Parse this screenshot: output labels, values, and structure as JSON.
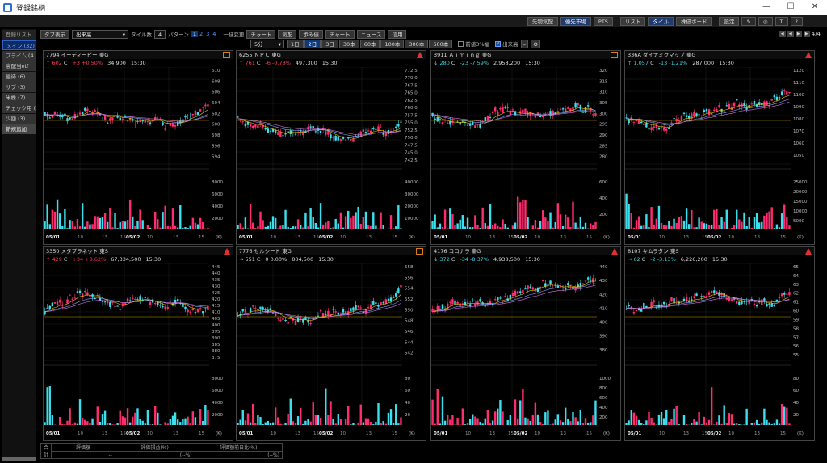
{
  "window": {
    "title": "登録銘柄",
    "min": "—",
    "max": "☐",
    "close": "✕"
  },
  "top_buttons": [
    {
      "label": "先物気配",
      "active": false
    },
    {
      "label": "優先市場",
      "active": true
    },
    {
      "label": "PTS",
      "active": false
    },
    {
      "label": "リスト",
      "active": false
    },
    {
      "label": "タイル",
      "active": true
    },
    {
      "label": "株価ボード",
      "active": false
    },
    {
      "label": "設定",
      "active": false
    }
  ],
  "sidebar": {
    "header": "登録リスト",
    "items": [
      "メイン (32)",
      "プライム (4",
      "高配当etf",
      "優待 (6)",
      "サブ (3)",
      "米株 (7)",
      "チェック用 (",
      "少額 (3)"
    ],
    "selected": 0,
    "add_button": "新規追加"
  },
  "toolbar": {
    "tab_display": "タブ表示",
    "sort_select": "出来高",
    "tile_count_label": "タイル数",
    "tile_count": "4",
    "pattern_label": "パターン",
    "patterns": [
      "1",
      "2",
      "3",
      "4"
    ],
    "bulk_change": "一括変更",
    "buttons": [
      "チャート",
      "気配",
      "歩み値",
      "チャート",
      "ニュース",
      "信用"
    ],
    "interval_select": "5分",
    "ranges": [
      "1日",
      "2日",
      "3日",
      "30本",
      "60本",
      "100本",
      "300本",
      "600本"
    ],
    "range_selected": 1,
    "chk_fixed": "前値3%幅",
    "chk_volume": "出来高",
    "pager": "4/4"
  },
  "tiles": [
    {
      "code": "7794",
      "name": "イーディーピー",
      "market": "東G",
      "dir": "↑",
      "price": "602",
      "cond": "C",
      "change": "+3",
      "pct": "+0.50%",
      "volume": "34,900",
      "time": "15:30",
      "color": "up",
      "badge": "badge",
      "yticks": [
        "610",
        "608",
        "606",
        "604",
        "602",
        "600",
        "598",
        "596",
        "594"
      ],
      "vticks": [
        "8000",
        "6000",
        "4000",
        "2000"
      ]
    },
    {
      "code": "6255",
      "name": "ＮＰＣ",
      "market": "東G",
      "dir": "↑",
      "price": "761",
      "cond": "C",
      "change": "-6",
      "pct": "-0.78%",
      "volume": "497,300",
      "time": "15:30",
      "color": "up",
      "badge": "warn",
      "yticks": [
        "772.5",
        "770.0",
        "767.5",
        "765.0",
        "762.5",
        "760.0",
        "757.5",
        "755.0",
        "752.5",
        "750.0",
        "747.5",
        "745.0",
        "742.5"
      ],
      "vticks": [
        "40000",
        "30000",
        "20000",
        "10000"
      ]
    },
    {
      "code": "3911",
      "name": "Ａｉｍｉｎｇ",
      "market": "東G",
      "dir": "↓",
      "price": "280",
      "cond": "C",
      "change": "-23",
      "pct": "-7.59%",
      "volume": "2,958,200",
      "time": "15:30",
      "color": "dn",
      "badge": "badge",
      "yticks": [
        "320",
        "315",
        "310",
        "305",
        "300",
        "295",
        "290",
        "285",
        "280"
      ],
      "vticks": [
        "600",
        "400",
        "200"
      ]
    },
    {
      "code": "336A",
      "name": "ダイナミクマップ",
      "market": "東G",
      "dir": "↑",
      "price": "1,057",
      "cond": "C",
      "change": "-13",
      "pct": "-1.21%",
      "volume": "287,000",
      "time": "15:30",
      "color": "dn",
      "badge": "warn",
      "yticks": [
        "1120",
        "1110",
        "1100",
        "1090",
        "1080",
        "1070",
        "1060",
        "1050"
      ],
      "vticks": [
        "25000",
        "20000",
        "15000",
        "10000",
        "5000"
      ]
    },
    {
      "code": "3350",
      "name": "メタプラネット",
      "market": "東S",
      "dir": "↑",
      "price": "429",
      "cond": "C",
      "change": "+34",
      "pct": "+8.62%",
      "volume": "67,334,500",
      "time": "15:30",
      "color": "up",
      "badge": "warn",
      "yticks": [
        "445",
        "440",
        "435",
        "430",
        "425",
        "420",
        "415",
        "410",
        "405",
        "400",
        "395",
        "390",
        "385",
        "380",
        "375"
      ],
      "vticks": [
        "8000",
        "6000",
        "4000",
        "2000"
      ]
    },
    {
      "code": "7776",
      "name": "セルシード",
      "market": "東G",
      "dir": "→",
      "price": "551",
      "cond": "C",
      "change": "0",
      "pct": "0.00%",
      "volume": "804,500",
      "time": "15:30",
      "color": "fl",
      "badge": "badge",
      "yticks": [
        "558",
        "556",
        "554",
        "552",
        "550",
        "548",
        "546",
        "544",
        "542"
      ],
      "vticks": [
        "80",
        "60",
        "40",
        "20"
      ]
    },
    {
      "code": "4176",
      "name": "ココナラ",
      "market": "東G",
      "dir": "↓",
      "price": "372",
      "cond": "C",
      "change": "-34",
      "pct": "-8.37%",
      "volume": "4,938,500",
      "time": "15:30",
      "color": "dn",
      "badge": "warn",
      "yticks": [
        "440",
        "430",
        "420",
        "410",
        "400",
        "390",
        "380"
      ],
      "vticks": [
        "1000",
        "800",
        "600",
        "400",
        "200"
      ]
    },
    {
      "code": "8107",
      "name": "キムラタン",
      "market": "東S",
      "dir": "→",
      "price": "62",
      "cond": "C",
      "change": "-2",
      "pct": "-3.13%",
      "volume": "6,226,200",
      "time": "15:30",
      "color": "dn",
      "badge": "warn",
      "yticks": [
        "65",
        "64",
        "63",
        "62",
        "61",
        "60",
        "59",
        "58",
        "57",
        "56",
        "55"
      ],
      "vticks": [
        "80",
        "60",
        "40",
        "20"
      ]
    }
  ],
  "chart_data": {
    "type": "table",
    "date_labels": [
      "05/01",
      "10",
      "13",
      "15",
      "05/02",
      "10",
      "13",
      "15"
    ],
    "vol_unit": "(K)"
  },
  "footer": {
    "total": "合計",
    "col1": "評価額",
    "col2": "評価損益(%)",
    "col3": "評価額前日比(%)",
    "v1": "--",
    "v2": "(--%)",
    "v3": "(--%)"
  }
}
